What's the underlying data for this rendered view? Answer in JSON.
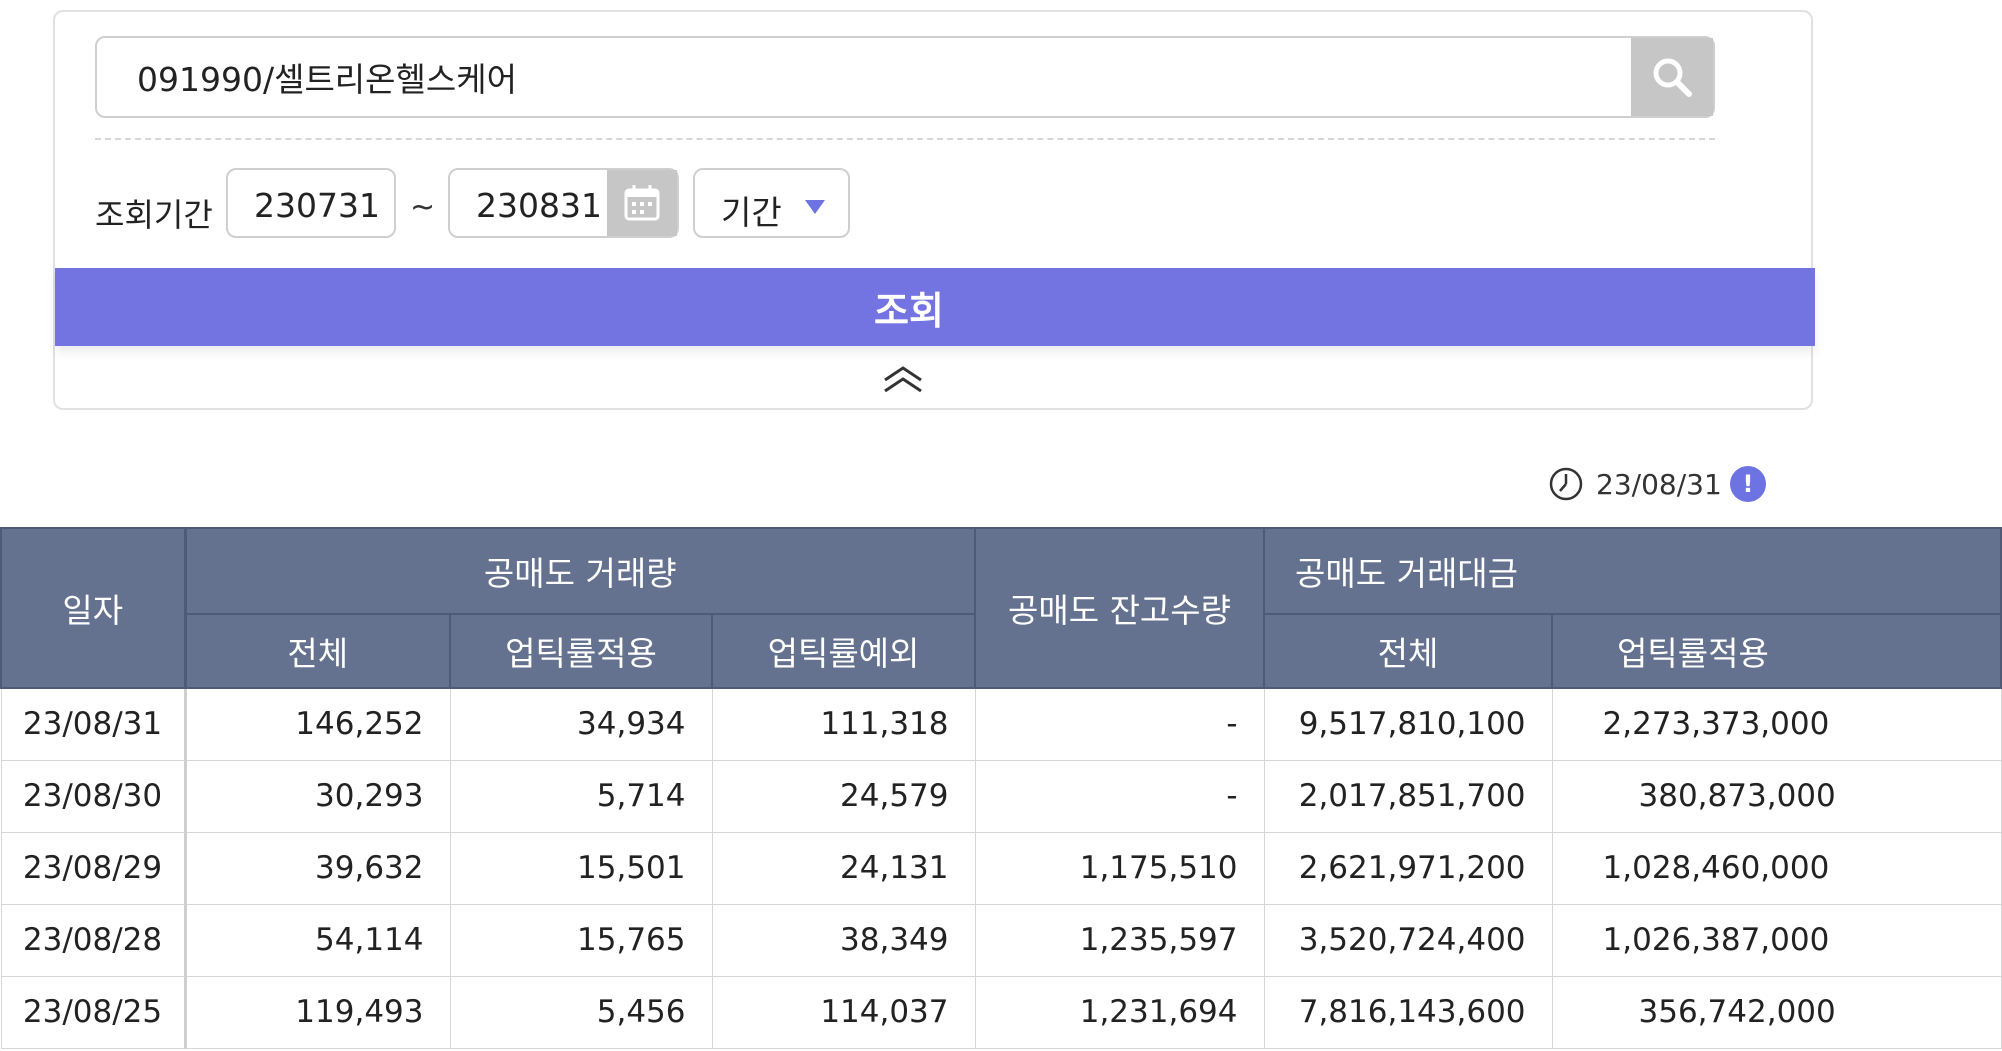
{
  "search": {
    "value": "091990/셀트리온헬스케어",
    "icon": "search-icon"
  },
  "filter": {
    "period_label": "조회기간",
    "start_date": "230731",
    "separator": "~",
    "end_date": "230831",
    "period_select": "기간",
    "calendar_icon": "calendar-icon",
    "accent": "#6d73e3"
  },
  "query_button": {
    "label": "조회",
    "color": "#7374e2"
  },
  "collapse_icon": "double-chevron-up-icon",
  "as_of": {
    "date": "23/08/31",
    "clock_icon": "clock-icon",
    "info_icon": "info-icon",
    "info_glyph": "!"
  },
  "table": {
    "header_color": "#64718f",
    "col_date": "일자",
    "group_volume": "공매도 거래량",
    "col_balance": "공매도 잔고수량",
    "group_amount": "공매도 거래대금",
    "sub_total": "전체",
    "sub_uptick_applied": "업틱률적용",
    "sub_uptick_exempt": "업틱률예외",
    "rows": [
      {
        "date": "23/08/31",
        "vol_total": "146,252",
        "vol_applied": "34,934",
        "vol_exempt": "111,318",
        "balance": "-",
        "amt_total": "9,517,810,100",
        "amt_applied": "2,273,373,000"
      },
      {
        "date": "23/08/30",
        "vol_total": "30,293",
        "vol_applied": "5,714",
        "vol_exempt": "24,579",
        "balance": "-",
        "amt_total": "2,017,851,700",
        "amt_applied": "380,873,000"
      },
      {
        "date": "23/08/29",
        "vol_total": "39,632",
        "vol_applied": "15,501",
        "vol_exempt": "24,131",
        "balance": "1,175,510",
        "amt_total": "2,621,971,200",
        "amt_applied": "1,028,460,000"
      },
      {
        "date": "23/08/28",
        "vol_total": "54,114",
        "vol_applied": "15,765",
        "vol_exempt": "38,349",
        "balance": "1,235,597",
        "amt_total": "3,520,724,400",
        "amt_applied": "1,026,387,000"
      },
      {
        "date": "23/08/25",
        "vol_total": "119,493",
        "vol_applied": "5,456",
        "vol_exempt": "114,037",
        "balance": "1,231,694",
        "amt_total": "7,816,143,600",
        "amt_applied": "356,742,000"
      }
    ]
  }
}
